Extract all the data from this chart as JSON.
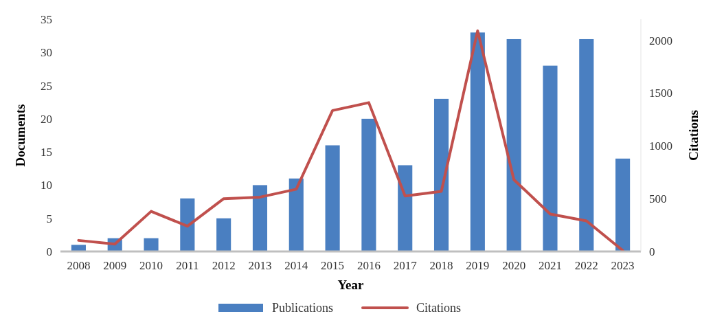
{
  "chart_data": {
    "type": "bar",
    "xlabel": "Year",
    "ylabel": "Documents",
    "y2label": "Citations",
    "categories": [
      "2008",
      "2009",
      "2010",
      "2011",
      "2012",
      "2013",
      "2014",
      "2015",
      "2016",
      "2017",
      "2018",
      "2019",
      "2020",
      "2021",
      "2022",
      "2023"
    ],
    "series": [
      {
        "name": "Publications",
        "color": "#4a7fc1",
        "values": [
          1,
          2,
          2,
          8,
          5,
          10,
          11,
          16,
          20,
          13,
          23,
          33,
          32,
          28,
          32,
          14
        ]
      },
      {
        "name": "Citations",
        "type": "line",
        "axis": "y2",
        "color": "#c0504d",
        "values": [
          105,
          70,
          380,
          240,
          500,
          515,
          590,
          1335,
          1410,
          525,
          570,
          2090,
          680,
          355,
          290,
          10
        ]
      }
    ],
    "ylim": [
      0,
      35
    ],
    "yticks": [
      0,
      5,
      10,
      15,
      20,
      25,
      30,
      35
    ],
    "y2lim": [
      0,
      2200
    ],
    "y2ticks": [
      0,
      500,
      1000,
      1500,
      2000
    ],
    "grid": false,
    "legend": "bottom",
    "line_style": "solid",
    "marker": "none"
  }
}
